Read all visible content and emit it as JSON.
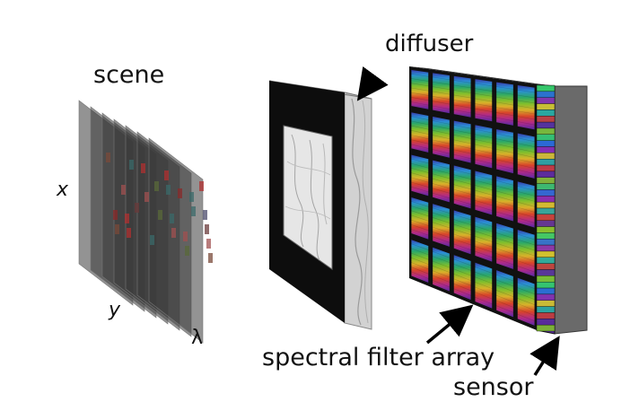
{
  "labels": {
    "scene": "scene",
    "x_axis": "x",
    "y_axis": "y",
    "lambda_axis": "λ",
    "diffuser": "diffuser",
    "filter_array": "spectral filter array",
    "sensor": "sensor"
  },
  "colors": {
    "stack_layer": "#3a3a3a",
    "frame": "#0d0d0d",
    "diffuser_fill": "#e4e4e4",
    "sensor": "#6a6a6a",
    "grid_line": "#111111",
    "arrow": "#000000"
  },
  "filter_array": {
    "rows": 5,
    "cols": 6
  },
  "stack": {
    "layers": 7
  }
}
